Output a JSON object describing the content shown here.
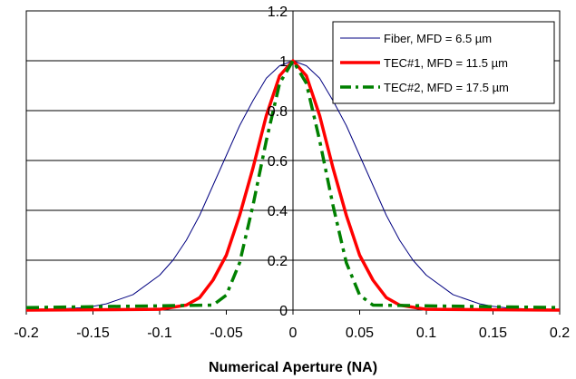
{
  "chart_data": {
    "type": "line",
    "title": "",
    "xlabel": "Numerical Aperture (NA)",
    "ylabel": "",
    "xlim": [
      -0.2,
      0.2
    ],
    "ylim": [
      0,
      1.2
    ],
    "xticks": [
      -0.2,
      -0.15,
      -0.1,
      -0.05,
      0,
      0.05,
      0.1,
      0.15,
      0.2
    ],
    "xtick_labels": [
      "-0.2",
      "-0.15",
      "-0.1",
      "-0.05",
      "0",
      "0.05",
      "0.1",
      "0.15",
      "0.2"
    ],
    "yticks": [
      0,
      0.2,
      0.4,
      0.6,
      0.8,
      1,
      1.2
    ],
    "ytick_labels": [
      "0",
      "0.2",
      "0.4",
      "0.6",
      "0.8",
      "1",
      "1.2"
    ],
    "grid": "horizontal",
    "legend_position": "top-right",
    "series": [
      {
        "name": "Fiber,   MFD = 6.5 µm",
        "color": "#000080",
        "style": "solid-thin",
        "x": [
          -0.2,
          -0.18,
          -0.16,
          -0.15,
          -0.14,
          -0.12,
          -0.1,
          -0.09,
          -0.08,
          -0.07,
          -0.06,
          -0.05,
          -0.04,
          -0.03,
          -0.02,
          -0.01,
          0,
          0.01,
          0.02,
          0.03,
          0.04,
          0.05,
          0.06,
          0.07,
          0.08,
          0.09,
          0.1,
          0.12,
          0.14,
          0.15,
          0.16,
          0.18,
          0.2
        ],
        "y": [
          0.001,
          0.003,
          0.009,
          0.015,
          0.025,
          0.062,
          0.14,
          0.2,
          0.28,
          0.38,
          0.5,
          0.62,
          0.74,
          0.84,
          0.93,
          0.98,
          1.0,
          0.98,
          0.93,
          0.84,
          0.74,
          0.62,
          0.5,
          0.38,
          0.28,
          0.2,
          0.14,
          0.062,
          0.025,
          0.015,
          0.009,
          0.003,
          0.001
        ]
      },
      {
        "name": "TEC#1, MFD = 11.5 µm",
        "color": "#ff0000",
        "style": "solid-thick",
        "x": [
          -0.2,
          -0.1,
          -0.08,
          -0.07,
          -0.06,
          -0.05,
          -0.04,
          -0.03,
          -0.02,
          -0.01,
          0,
          0.01,
          0.02,
          0.03,
          0.04,
          0.05,
          0.06,
          0.07,
          0.08,
          0.1,
          0.2
        ],
        "y": [
          0,
          0.003,
          0.02,
          0.05,
          0.12,
          0.22,
          0.38,
          0.57,
          0.78,
          0.94,
          1.0,
          0.94,
          0.78,
          0.57,
          0.38,
          0.22,
          0.12,
          0.05,
          0.02,
          0.003,
          0
        ]
      },
      {
        "name": "TEC#2, MFD = 17.5 µm",
        "color": "#008000",
        "style": "dashed-thick",
        "x": [
          -0.2,
          -0.06,
          -0.05,
          -0.04,
          -0.03,
          -0.02,
          -0.01,
          0,
          0.01,
          0.02,
          0.03,
          0.04,
          0.05,
          0.06,
          0.2
        ],
        "y": [
          0.01,
          0.02,
          0.06,
          0.19,
          0.42,
          0.68,
          0.91,
          1.0,
          0.91,
          0.68,
          0.42,
          0.19,
          0.06,
          0.02,
          0.01
        ]
      }
    ]
  }
}
